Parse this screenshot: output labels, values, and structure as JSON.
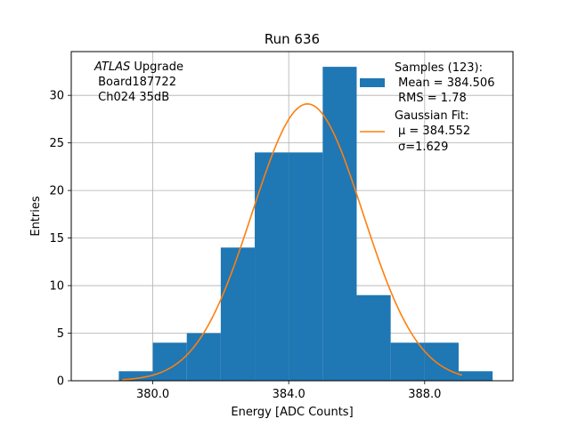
{
  "chart_data": {
    "type": "bar",
    "title": "Run 636",
    "xlabel": "Energy [ADC Counts]",
    "ylabel": "Entries",
    "xlim": [
      377.6,
      390.6
    ],
    "ylim": [
      0,
      34.6
    ],
    "x_ticks": [
      380.0,
      384.0,
      388.0
    ],
    "x_tick_labels": [
      "380.0",
      "384.0",
      "388.0"
    ],
    "y_ticks": [
      0,
      5,
      10,
      15,
      20,
      25,
      30
    ],
    "y_tick_labels": [
      "0",
      "5",
      "10",
      "15",
      "20",
      "25",
      "30"
    ],
    "grid": true,
    "bin_edges": [
      379,
      380,
      381,
      382,
      383,
      384,
      385,
      386,
      387,
      388,
      389,
      390
    ],
    "counts": [
      1,
      4,
      5,
      14,
      24,
      24,
      33,
      9,
      4,
      4,
      1
    ],
    "bar_color": "#1f77b4",
    "fit": {
      "mu": 384.552,
      "sigma": 1.629,
      "peak": 29.1,
      "x_range": [
        379.1,
        389.1
      ],
      "color": "#ff7f0e"
    },
    "legend": {
      "placement": "top-right",
      "entries": [
        {
          "kind": "patch",
          "lines": [
            "Samples (123):",
            " Mean = 384.506",
            " RMS = 1.78"
          ]
        },
        {
          "kind": "line",
          "lines": [
            "Gaussian Fit:",
            "μ = 384.552",
            "σ=1.629"
          ]
        }
      ]
    },
    "annotation": {
      "placement": "top-left",
      "italic": "ATLAS",
      "line1_rest": " Upgrade",
      "line2": " Board187722",
      "line3": " Ch024 35dB"
    }
  }
}
